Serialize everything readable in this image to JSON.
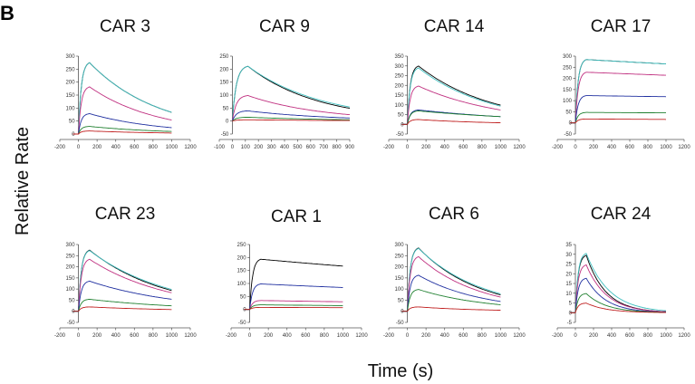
{
  "figure": {
    "panel_letter": "B",
    "ylabel": "Relative Rate",
    "xlabel": "Time (s)"
  },
  "chart_data": [
    {
      "type": "line",
      "title": "CAR 3",
      "xlim": [
        -200,
        1200
      ],
      "ylim": [
        0,
        300
      ],
      "xticks": [
        -200,
        0,
        200,
        400,
        600,
        800,
        1000,
        1200
      ],
      "yticks": [
        0,
        50,
        100,
        150,
        200,
        250,
        300
      ],
      "inject": [
        0,
        120,
        1000
      ],
      "series": [
        {
          "peak": 280,
          "end": 85,
          "color": "#000000"
        },
        {
          "peak": 280,
          "end": 85,
          "color": "#40c0c0"
        },
        {
          "peak": 185,
          "end": 55,
          "color": "#c03080"
        },
        {
          "peak": 80,
          "end": 25,
          "color": "#2030a0"
        },
        {
          "peak": 30,
          "end": 10,
          "color": "#208030"
        },
        {
          "peak": 12,
          "end": 4,
          "color": "#c02020"
        }
      ]
    },
    {
      "type": "line",
      "title": "CAR 9",
      "xlim": [
        -100,
        900
      ],
      "ylim": [
        -50,
        250
      ],
      "xticks": [
        -100,
        0,
        100,
        200,
        300,
        400,
        500,
        600,
        700,
        800,
        900
      ],
      "yticks": [
        -50,
        0,
        50,
        100,
        150,
        200,
        250
      ],
      "inject": [
        0,
        120,
        900
      ],
      "series": [
        {
          "peak": 215,
          "end": 50,
          "color": "#000000"
        },
        {
          "peak": 215,
          "end": 55,
          "color": "#40c0c0"
        },
        {
          "peak": 100,
          "end": 25,
          "color": "#c03080"
        },
        {
          "peak": 40,
          "end": 12,
          "color": "#2030a0"
        },
        {
          "peak": 15,
          "end": 5,
          "color": "#208030"
        },
        {
          "peak": 5,
          "end": 2,
          "color": "#c02020"
        }
      ]
    },
    {
      "type": "line",
      "title": "CAR 14",
      "xlim": [
        -200,
        1200
      ],
      "ylim": [
        -50,
        350
      ],
      "xticks": [
        -200,
        0,
        200,
        400,
        600,
        800,
        1000,
        1200
      ],
      "yticks": [
        -50,
        0,
        50,
        100,
        150,
        200,
        250,
        300,
        350
      ],
      "inject": [
        0,
        120,
        1000
      ],
      "series": [
        {
          "peak": 305,
          "end": 100,
          "color": "#000000"
        },
        {
          "peak": 295,
          "end": 95,
          "color": "#40c0c0"
        },
        {
          "peak": 200,
          "end": 75,
          "color": "#c03080"
        },
        {
          "peak": 75,
          "end": 40,
          "color": "#2030a0"
        },
        {
          "peak": 70,
          "end": 40,
          "color": "#208030"
        },
        {
          "peak": 25,
          "end": 8,
          "color": "#c02020"
        }
      ]
    },
    {
      "type": "line",
      "title": "CAR 17",
      "xlim": [
        -200,
        1200
      ],
      "ylim": [
        -50,
        300
      ],
      "xticks": [
        -200,
        0,
        200,
        400,
        600,
        800,
        1000,
        1200
      ],
      "yticks": [
        -50,
        0,
        50,
        100,
        150,
        200,
        250,
        300
      ],
      "inject": [
        0,
        120,
        1000
      ],
      "series": [
        {
          "peak": 290,
          "end": 270,
          "color": "#000000"
        },
        {
          "peak": 290,
          "end": 270,
          "color": "#40c0c0"
        },
        {
          "peak": 232,
          "end": 218,
          "color": "#c03080"
        },
        {
          "peak": 125,
          "end": 120,
          "color": "#2030a0"
        },
        {
          "peak": 48,
          "end": 46,
          "color": "#208030"
        },
        {
          "peak": 18,
          "end": 16,
          "color": "#c02020"
        }
      ]
    },
    {
      "type": "line",
      "title": "CAR 23",
      "xlim": [
        -200,
        1200
      ],
      "ylim": [
        -50,
        300
      ],
      "xticks": [
        -200,
        0,
        200,
        400,
        600,
        800,
        1000,
        1200
      ],
      "yticks": [
        -50,
        0,
        50,
        100,
        150,
        200,
        250,
        300
      ],
      "inject": [
        0,
        120,
        1000
      ],
      "series": [
        {
          "peak": 280,
          "end": 95,
          "color": "#000000"
        },
        {
          "peak": 278,
          "end": 100,
          "color": "#40c0c0"
        },
        {
          "peak": 238,
          "end": 85,
          "color": "#c03080"
        },
        {
          "peak": 138,
          "end": 55,
          "color": "#2030a0"
        },
        {
          "peak": 55,
          "end": 25,
          "color": "#208030"
        },
        {
          "peak": 20,
          "end": 8,
          "color": "#c02020"
        }
      ]
    },
    {
      "type": "line",
      "title": "CAR 1",
      "xlim": [
        -200,
        1200
      ],
      "ylim": [
        -50,
        250
      ],
      "xticks": [
        -200,
        0,
        200,
        400,
        600,
        800,
        1000,
        1200
      ],
      "yticks": [
        -50,
        0,
        50,
        100,
        150,
        200,
        250
      ],
      "inject": [
        0,
        120,
        1000
      ],
      "series": [
        {
          "peak": 197,
          "end": 170,
          "color": "#000000"
        },
        {
          "peak": 100,
          "end": 86,
          "color": "#2030a0"
        },
        {
          "peak": 35,
          "end": 30,
          "color": "#c03080"
        },
        {
          "peak": 18,
          "end": 15,
          "color": "#208030"
        },
        {
          "peak": 8,
          "end": 7,
          "color": "#c02020"
        }
      ]
    },
    {
      "type": "line",
      "title": "CAR 6",
      "xlim": [
        -200,
        1200
      ],
      "ylim": [
        -50,
        300
      ],
      "xticks": [
        -200,
        0,
        200,
        400,
        600,
        800,
        1000,
        1200
      ],
      "yticks": [
        -50,
        0,
        50,
        100,
        150,
        200,
        250,
        300
      ],
      "inject": [
        0,
        120,
        1000
      ],
      "series": [
        {
          "peak": 290,
          "end": 75,
          "color": "#000000"
        },
        {
          "peak": 288,
          "end": 80,
          "color": "#40c0c0"
        },
        {
          "peak": 250,
          "end": 65,
          "color": "#c03080"
        },
        {
          "peak": 165,
          "end": 45,
          "color": "#2030a0"
        },
        {
          "peak": 100,
          "end": 30,
          "color": "#208030"
        },
        {
          "peak": 20,
          "end": 5,
          "color": "#c02020"
        }
      ]
    },
    {
      "type": "line",
      "title": "CAR 24",
      "xlim": [
        -200,
        1200
      ],
      "ylim": [
        -5,
        35
      ],
      "xticks": [
        -200,
        0,
        200,
        400,
        600,
        800,
        1000,
        1200
      ],
      "yticks": [
        -5,
        0,
        5,
        10,
        15,
        20,
        25,
        30,
        35
      ],
      "inject": [
        0,
        120,
        1000
      ],
      "series": [
        {
          "peak": 30,
          "end": 0.5,
          "color": "#000000"
        },
        {
          "peak": 31,
          "end": 1,
          "color": "#40c0c0"
        },
        {
          "peak": 25,
          "end": 0.5,
          "color": "#c03080"
        },
        {
          "peak": 18,
          "end": 0.3,
          "color": "#2030a0"
        },
        {
          "peak": 10,
          "end": 0.2,
          "color": "#208030"
        },
        {
          "peak": 5,
          "end": 0.1,
          "color": "#c02020"
        }
      ]
    }
  ]
}
